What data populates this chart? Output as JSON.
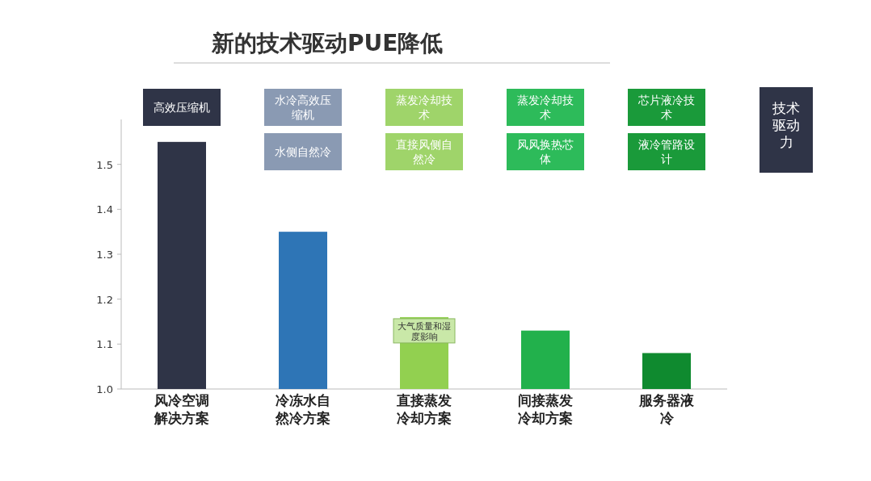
{
  "chart_data": {
    "type": "bar",
    "title": "新的技术驱动PUE降低",
    "categories": [
      "风冷空调解决方案",
      "冷冻水自然冷方案",
      "直接蒸发冷却方案",
      "间接蒸发冷却方案",
      "服务器液冷"
    ],
    "values": [
      1.55,
      1.35,
      1.16,
      1.13,
      1.08
    ],
    "colors": [
      "#2f3447",
      "#2e75b6",
      "#92d050",
      "#22b14c",
      "#0f8a2f"
    ],
    "ylim": [
      1.0,
      1.6
    ],
    "yticks": [
      {
        "value": 1,
        "label": "1.0"
      },
      1.1,
      1.2,
      1.3,
      1.4,
      1.5
    ],
    "grid": false,
    "annotations": [
      "高效压缩机",
      "水冷高效压缩机",
      "水侧自然冷",
      "蒸发冷却技术",
      "直接风侧自然冷",
      "蒸发冷却技术",
      "风风换热芯体",
      "芯片液冷技术",
      "液冷管路设计",
      "技术驱动力",
      {
        "text": "大气质量和湿度影响",
        "x": "直接蒸发冷却方案",
        "y": 1.16
      }
    ]
  }
}
